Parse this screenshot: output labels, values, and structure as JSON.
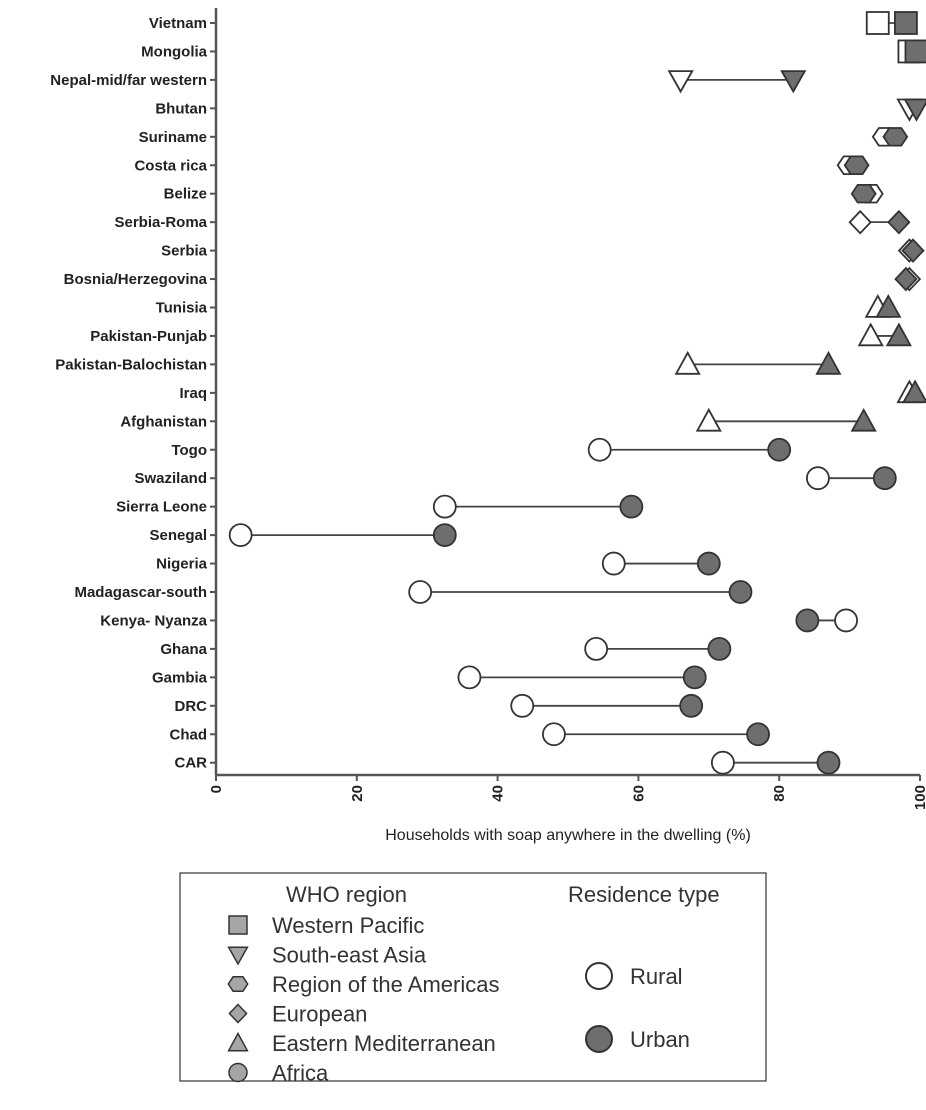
{
  "chart_data": {
    "type": "dumbbell",
    "xlabel": "Households with soap anywhere in the dwelling (%)",
    "xlim": [
      0,
      100
    ],
    "xticks": [
      "0",
      "20",
      "40",
      "60",
      "80",
      "100"
    ],
    "colors": {
      "urban_fill": "#6e6e6e",
      "rural_fill": "#ffffff",
      "stroke": "#333333",
      "legend_fill": "#a6a6a6"
    },
    "rows": [
      {
        "country": "Vietnam",
        "region": "Western Pacific",
        "rural": 94,
        "urban": 98
      },
      {
        "country": "Mongolia",
        "region": "Western Pacific",
        "rural": 98.5,
        "urban": 99.5
      },
      {
        "country": "Nepal-mid/far western",
        "region": "South-east Asia",
        "rural": 66,
        "urban": 82
      },
      {
        "country": "Bhutan",
        "region": "South-east Asia",
        "rural": 98.5,
        "urban": 99.5
      },
      {
        "country": "Suriname",
        "region": "Region of the Americas",
        "rural": 95,
        "urban": 96.5
      },
      {
        "country": "Costa rica",
        "region": "Region of the Americas",
        "rural": 90,
        "urban": 91
      },
      {
        "country": "Belize",
        "region": "Region of the Americas",
        "rural": 93,
        "urban": 92
      },
      {
        "country": "Serbia-Roma",
        "region": "European",
        "rural": 91.5,
        "urban": 97
      },
      {
        "country": "Serbia",
        "region": "European",
        "rural": 98.5,
        "urban": 99
      },
      {
        "country": "Bosnia/Herzegovina",
        "region": "European",
        "rural": 98.5,
        "urban": 98
      },
      {
        "country": "Tunisia",
        "region": "Eastern Mediterranean",
        "rural": 94,
        "urban": 95.5
      },
      {
        "country": "Pakistan-Punjab",
        "region": "Eastern Mediterranean",
        "rural": 93,
        "urban": 97
      },
      {
        "country": "Pakistan-Balochistan",
        "region": "Eastern Mediterranean",
        "rural": 67,
        "urban": 87
      },
      {
        "country": "Iraq",
        "region": "Eastern Mediterranean",
        "rural": 98.5,
        "urban": 99.3
      },
      {
        "country": "Afghanistan",
        "region": "Eastern Mediterranean",
        "rural": 70,
        "urban": 92
      },
      {
        "country": "Togo",
        "region": "Africa",
        "rural": 54.5,
        "urban": 80
      },
      {
        "country": "Swaziland",
        "region": "Africa",
        "rural": 85.5,
        "urban": 95
      },
      {
        "country": "Sierra Leone",
        "region": "Africa",
        "rural": 32.5,
        "urban": 59
      },
      {
        "country": "Senegal",
        "region": "Africa",
        "rural": 3.5,
        "urban": 32.5
      },
      {
        "country": "Nigeria",
        "region": "Africa",
        "rural": 56.5,
        "urban": 70
      },
      {
        "country": "Madagascar-south",
        "region": "Africa",
        "rural": 29,
        "urban": 74.5
      },
      {
        "country": "Kenya- Nyanza",
        "region": "Africa",
        "rural": 89.5,
        "urban": 84
      },
      {
        "country": "Ghana",
        "region": "Africa",
        "rural": 54,
        "urban": 71.5
      },
      {
        "country": "Gambia",
        "region": "Africa",
        "rural": 36,
        "urban": 68
      },
      {
        "country": "DRC",
        "region": "Africa",
        "rural": 43.5,
        "urban": 67.5
      },
      {
        "country": "Chad",
        "region": "Africa",
        "rural": 48,
        "urban": 77
      },
      {
        "country": "CAR",
        "region": "Africa",
        "rural": 72,
        "urban": 87
      }
    ]
  },
  "legend": {
    "region_title": "WHO region",
    "residence_title": "Residence type",
    "regions": [
      {
        "label": "Western Pacific",
        "shape": "square"
      },
      {
        "label": "South-east Asia",
        "shape": "triangle-down"
      },
      {
        "label": "Region of the Americas",
        "shape": "hexagon"
      },
      {
        "label": "European",
        "shape": "diamond"
      },
      {
        "label": "Eastern Mediterranean",
        "shape": "triangle-up"
      },
      {
        "label": "Africa",
        "shape": "circle"
      }
    ],
    "residence": [
      {
        "label": "Rural",
        "style": "open"
      },
      {
        "label": "Urban",
        "style": "filled"
      }
    ]
  }
}
